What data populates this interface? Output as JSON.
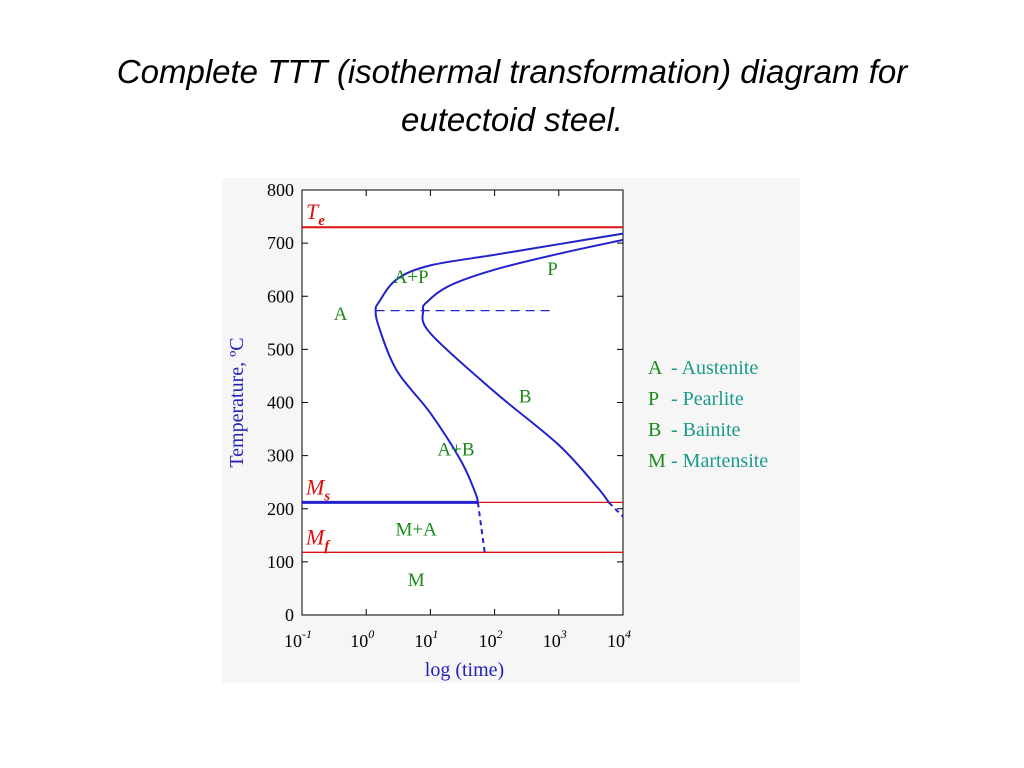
{
  "slide": {
    "title_line1": "Complete TTT (isothermal transformation) diagram for",
    "title_line2": "eutectoid steel."
  },
  "chart_data": {
    "type": "line",
    "xscale": "log",
    "xlim": [
      0.1,
      10000
    ],
    "ylim": [
      0,
      800
    ],
    "xlabel": "log (time)",
    "ylabel": "Temperature, ºC",
    "x_ticks": [
      {
        "base": "10",
        "exp": "-1"
      },
      {
        "base": "10",
        "exp": "0"
      },
      {
        "base": "10",
        "exp": "1"
      },
      {
        "base": "10",
        "exp": "2"
      },
      {
        "base": "10",
        "exp": "3"
      },
      {
        "base": "10",
        "exp": "4"
      }
    ],
    "y_ticks": [
      "0",
      "100",
      "200",
      "300",
      "400",
      "500",
      "600",
      "700",
      "800"
    ],
    "reference_lines": [
      {
        "label": "T",
        "sub": "e",
        "y": 730
      },
      {
        "label": "M",
        "sub": "s",
        "y": 212
      },
      {
        "label": "M",
        "sub": "f",
        "y": 118
      }
    ],
    "curves": [
      {
        "id": "start",
        "points": [
          [
            10000,
            718
          ],
          [
            1000,
            698
          ],
          [
            100,
            678
          ],
          [
            10,
            658
          ],
          [
            3,
            632
          ],
          [
            1.6,
            590
          ],
          [
            1.4,
            573
          ],
          [
            1.6,
            540
          ],
          [
            3,
            460
          ],
          [
            10,
            380
          ],
          [
            30,
            290
          ],
          [
            50,
            230
          ],
          [
            55,
            212
          ]
        ]
      },
      {
        "id": "finish",
        "points": [
          [
            10000,
            706
          ],
          [
            1000,
            680
          ],
          [
            100,
            650
          ],
          [
            20,
            620
          ],
          [
            9,
            590
          ],
          [
            7.7,
            573
          ],
          [
            10,
            530
          ],
          [
            100,
            420
          ],
          [
            1000,
            320
          ],
          [
            4000,
            240
          ],
          [
            6000,
            212
          ]
        ]
      }
    ],
    "dashed_segments": [
      {
        "id": "nose-line",
        "points": [
          [
            1.4,
            573
          ],
          [
            800,
            573
          ]
        ]
      },
      {
        "id": "start-below-ms",
        "points": [
          [
            55,
            212
          ],
          [
            70,
            118
          ]
        ]
      },
      {
        "id": "finish-below-ms",
        "points": [
          [
            6000,
            212
          ],
          [
            10000,
            185
          ]
        ]
      }
    ],
    "ms_start_line": {
      "x_from": 0.1,
      "x_to": 55,
      "y": 212
    },
    "regions": [
      {
        "text": "A",
        "x": 0.4,
        "y": 555
      },
      {
        "text": "A+P",
        "x": 5,
        "y": 625
      },
      {
        "text": "P",
        "x": 800,
        "y": 640
      },
      {
        "text": "B",
        "x": 300,
        "y": 400
      },
      {
        "text": "A+B",
        "x": 25,
        "y": 300
      },
      {
        "text": "M+A",
        "x": 6,
        "y": 150
      },
      {
        "text": "M",
        "x": 6,
        "y": 55
      }
    ],
    "legend": [
      {
        "key": "A",
        "value": "- Austenite"
      },
      {
        "key": "P",
        "value": "- Pearlite"
      },
      {
        "key": "B",
        "value": "- Bainite"
      },
      {
        "key": "M",
        "value": "- Martensite"
      }
    ],
    "colors": {
      "curves": "#2222cc",
      "reference": "#dd1111",
      "regions": "#1a8a1a",
      "legend": "#1a9a8a"
    }
  }
}
